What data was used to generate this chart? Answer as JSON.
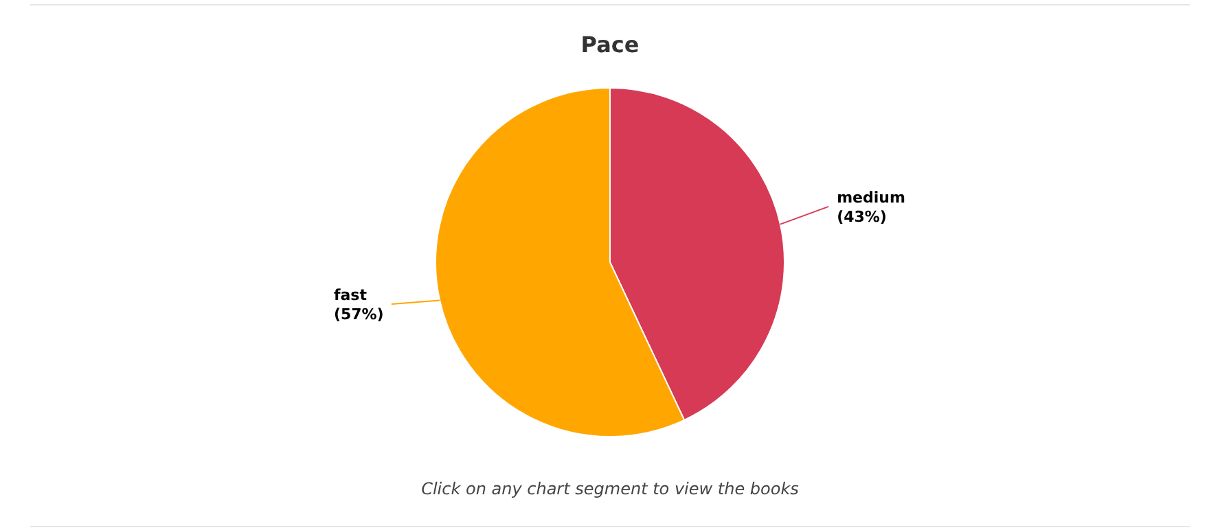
{
  "chart_data": {
    "type": "pie",
    "title": "Pace",
    "categories": [
      "medium",
      "fast"
    ],
    "values": [
      43,
      57
    ],
    "colors": [
      "#d63a55",
      "#ffa600"
    ],
    "value_labels": [
      "(43%)",
      "(57%)"
    ],
    "annotations": [
      "Click on any chart segment to view the books"
    ]
  }
}
